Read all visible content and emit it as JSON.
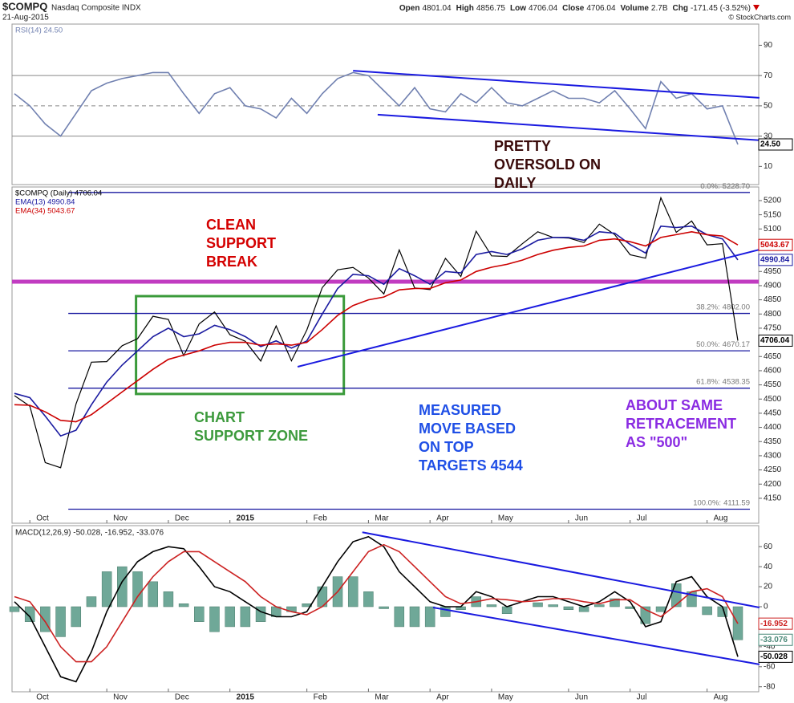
{
  "header": {
    "symbol": "$COMPQ",
    "name": "Nasdaq Composite INDX",
    "date": "21-Aug-2015",
    "quote": [
      {
        "label": "Open",
        "value": 4801.04
      },
      {
        "label": "High",
        "value": 4856.75
      },
      {
        "label": "Low",
        "value": 4706.04
      },
      {
        "label": "Close",
        "value": 4706.04
      },
      {
        "label": "Volume",
        "value": "2.7B"
      },
      {
        "label": "Chg",
        "value": "-171.45 (-3.52%)"
      }
    ],
    "copyright": "© StockCharts.com"
  },
  "chart_data": [
    {
      "type": "line",
      "series": [
        {
          "name": "RSI(14) 24.50",
          "color": "#7080b0",
          "values": [
            58,
            50,
            38,
            30,
            45,
            60,
            65,
            68,
            70,
            72,
            72,
            58,
            45,
            58,
            62,
            50,
            48,
            42,
            55,
            45,
            58,
            68,
            72,
            70,
            60,
            50,
            62,
            48,
            46,
            58,
            52,
            62,
            52,
            50,
            55,
            60,
            55,
            55,
            52,
            60,
            48,
            35,
            66,
            55,
            58,
            48,
            50,
            24.5
          ]
        }
      ],
      "ylim": [
        -2,
        104
      ],
      "yticks": [
        10,
        30,
        50,
        70,
        90
      ],
      "guides": [
        30,
        50,
        70
      ],
      "guide_styles": [
        "solid",
        "dashed",
        "solid"
      ],
      "trendlines": [
        {
          "from": [
            22.0,
            73.2
          ],
          "to": [
            48.4,
            55.3
          ],
          "color": "#1a1ae0"
        },
        {
          "from": [
            23.6,
            44.2
          ],
          "to": [
            48.4,
            27.3
          ],
          "color": "#1a1ae0"
        }
      ],
      "tags": [
        {
          "value": 24.5,
          "label": "24.50",
          "color": "#000000"
        }
      ]
    },
    {
      "type": "line",
      "categories": [
        null,
        "Oct",
        null,
        null,
        null,
        null,
        "Nov",
        null,
        null,
        null,
        "Dec",
        null,
        null,
        null,
        "2015",
        null,
        null,
        null,
        null,
        "Feb",
        null,
        null,
        null,
        "Mar",
        null,
        null,
        null,
        "Apr",
        null,
        null,
        null,
        "May",
        null,
        null,
        null,
        null,
        "Jun",
        null,
        null,
        null,
        "Jul",
        null,
        null,
        null,
        null,
        "Aug",
        null,
        null
      ],
      "series": [
        {
          "name": "$COMPQ (Daily) 4706.04",
          "color": "#000000",
          "values": [
            4512,
            4475,
            4276,
            4258,
            4483,
            4630,
            4632,
            4688,
            4713,
            4792,
            4781,
            4653,
            4765,
            4807,
            4727,
            4704,
            4634,
            4758,
            4635,
            4744,
            4893,
            4956,
            4964,
            4927,
            4871,
            5026,
            4892,
            4886,
            4996,
            4932,
            5092,
            5005,
            5003,
            5048,
            5090,
            5070,
            5068,
            5052,
            5117,
            5080,
            5009,
            4997,
            5210,
            5088,
            5128,
            5044,
            5048,
            4706.04
          ]
        },
        {
          "name": "EMA(13) 4990.84",
          "color": "#1a1aa0",
          "values": [
            4520,
            4505,
            4440,
            4370,
            4390,
            4480,
            4560,
            4620,
            4670,
            4720,
            4750,
            4720,
            4730,
            4760,
            4745,
            4720,
            4685,
            4705,
            4680,
            4705,
            4800,
            4890,
            4940,
            4935,
            4905,
            4960,
            4935,
            4905,
            4950,
            4945,
            5010,
            5020,
            5010,
            5030,
            5060,
            5070,
            5070,
            5060,
            5090,
            5085,
            5045,
            5015,
            5110,
            5105,
            5110,
            5080,
            5065,
            4990.84
          ]
        },
        {
          "name": "EMA(34) 5043.67",
          "color": "#cc0000",
          "values": [
            4480,
            4478,
            4455,
            4425,
            4420,
            4445,
            4485,
            4525,
            4565,
            4605,
            4640,
            4655,
            4670,
            4690,
            4700,
            4700,
            4690,
            4695,
            4690,
            4700,
            4745,
            4795,
            4830,
            4850,
            4860,
            4885,
            4890,
            4890,
            4910,
            4920,
            4950,
            4965,
            4975,
            4990,
            5010,
            5025,
            5035,
            5040,
            5060,
            5065,
            5055,
            5040,
            5070,
            5080,
            5090,
            5080,
            5075,
            5043.67
          ]
        }
      ],
      "ylim": [
        4062,
        5248
      ],
      "yticks": [
        4150,
        4200,
        4250,
        4300,
        4350,
        4400,
        4450,
        4500,
        4550,
        4600,
        4650,
        4700,
        4750,
        4800,
        4850,
        4900,
        4950,
        5000,
        5050,
        5100,
        5150,
        5200
      ],
      "levels_start": 3.5,
      "levels_color": "#1a1aa0",
      "levels": [
        {
          "name": "0.0%:",
          "value": 5228.7,
          "label": "5228.70"
        },
        {
          "name": "38.2%:",
          "value": 4802,
          "label": "4802.00"
        },
        {
          "name": "50.0%:",
          "value": 4670.17
        },
        {
          "name": "61.8%:",
          "value": 4538.35
        },
        {
          "name": "100.0%:",
          "value": 4111.59
        }
      ],
      "support_line": {
        "value": 4914,
        "color": "#c13cc1"
      },
      "trendlines": [
        {
          "from": [
            18.4,
            4614
          ],
          "to": [
            48.4,
            5027
          ],
          "color": "#1a1ae0"
        }
      ],
      "zone": {
        "x": [
          7.9,
          21.4
        ],
        "y": [
          4518,
          4863
        ],
        "color": "#3a9a3a"
      },
      "annotations": [
        {
          "lines": [
            "PRETTY",
            "OVERSOLD ON",
            "DAILY"
          ],
          "color": "#3a0a0a"
        },
        {
          "lines": [
            "CLEAN",
            "SUPPORT",
            "BREAK"
          ],
          "color": "#d40000"
        },
        {
          "lines": [
            "CHART",
            "SUPPORT ZONE"
          ],
          "color": "#3d9a3d"
        },
        {
          "lines": [
            "MEASURED",
            "MOVE BASED",
            "ON TOP",
            "TARGETS 4544"
          ],
          "color": "#1f4fe6"
        },
        {
          "lines": [
            "ABOUT SAME",
            "RETRACEMENT",
            "AS \"500\""
          ],
          "color": "#8a2be2"
        }
      ],
      "tags": [
        {
          "value": 5043.67,
          "color": "#cc0000"
        },
        {
          "value": 4990.84,
          "color": "#1a1aa0"
        },
        {
          "value": 4706.04,
          "color": "#000000"
        }
      ]
    },
    {
      "type": "line",
      "label": "MACD(12,26,9) -50.028, -16.952, -33.076",
      "categories": [
        null,
        "Oct",
        null,
        null,
        null,
        null,
        "Nov",
        null,
        null,
        null,
        "Dec",
        null,
        null,
        null,
        "2015",
        null,
        null,
        null,
        null,
        "Feb",
        null,
        null,
        null,
        "Mar",
        null,
        null,
        null,
        "Apr",
        null,
        null,
        null,
        "May",
        null,
        null,
        null,
        null,
        "Jun",
        null,
        null,
        null,
        "Jul",
        null,
        null,
        null,
        null,
        "Aug",
        null,
        null
      ],
      "series": [
        {
          "type": "bar",
          "color": "#6fa898",
          "values": [
            -5,
            -15,
            -25,
            -30,
            -20,
            10,
            35,
            40,
            35,
            25,
            15,
            3,
            -15,
            -25,
            -20,
            -20,
            -15,
            -10,
            -5,
            3,
            20,
            30,
            30,
            15,
            -2,
            -20,
            -20,
            -20,
            -10,
            -3,
            10,
            2,
            -7,
            0,
            4,
            2,
            -3,
            -5,
            2,
            8,
            -2,
            -17,
            -5,
            23,
            15,
            -8,
            -10,
            -33.076
          ]
        },
        {
          "type": "line",
          "color": "#000000",
          "values": [
            5,
            -10,
            -40,
            -70,
            -75,
            -45,
            -5,
            25,
            45,
            55,
            60,
            58,
            40,
            20,
            15,
            5,
            -5,
            -10,
            -10,
            -5,
            20,
            45,
            65,
            70,
            60,
            35,
            20,
            5,
            0,
            0,
            15,
            10,
            0,
            5,
            10,
            10,
            5,
            0,
            5,
            15,
            5,
            -20,
            -15,
            25,
            30,
            10,
            0,
            -50.028
          ]
        },
        {
          "type": "line",
          "color": "#cc2222",
          "values": [
            10,
            5,
            -15,
            -40,
            -55,
            -55,
            -40,
            -15,
            10,
            30,
            45,
            55,
            55,
            45,
            35,
            25,
            10,
            0,
            -5,
            -8,
            0,
            15,
            35,
            55,
            62,
            55,
            40,
            25,
            10,
            3,
            5,
            8,
            7,
            5,
            6,
            8,
            8,
            5,
            3,
            7,
            7,
            -3,
            -10,
            2,
            15,
            18,
            10,
            -16.952
          ]
        }
      ],
      "ylim": [
        -85,
        81
      ],
      "yticks": [
        -80,
        -60,
        -40,
        -20,
        0,
        20,
        40,
        60
      ],
      "trendlines": [
        {
          "from": [
            22.6,
            74.4
          ],
          "to": [
            48.4,
            -0.8
          ],
          "color": "#1a1ae0"
        },
        {
          "from": [
            27.2,
            -0.8
          ],
          "to": [
            48.4,
            -57.6
          ],
          "color": "#1a1ae0"
        }
      ],
      "tags": [
        {
          "value": -16.952,
          "color": "#cc2222"
        },
        {
          "value": -33.076,
          "color": "#4a8878"
        },
        {
          "value": -50.028,
          "color": "#000000"
        }
      ]
    }
  ]
}
